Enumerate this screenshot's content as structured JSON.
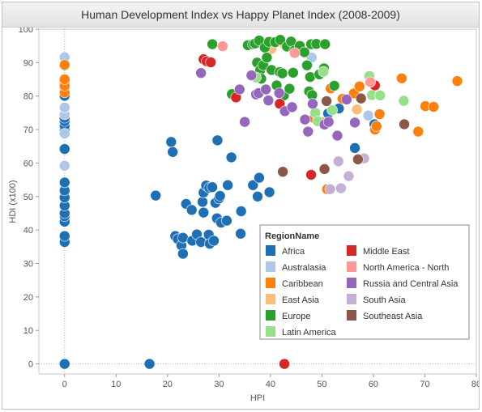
{
  "chart_data": {
    "type": "scatter",
    "title": "Human Development Index vs Happy Planet Index (2008-2009)",
    "xlabel": "HPI",
    "ylabel": "HDI (x100)",
    "xlim": [
      -5,
      80
    ],
    "ylim": [
      -3,
      100
    ],
    "x_ticks": [
      0,
      10,
      20,
      30,
      40,
      50,
      60,
      70,
      80
    ],
    "y_ticks": [
      0,
      10,
      20,
      30,
      40,
      50,
      60,
      70,
      80,
      90,
      100
    ],
    "grid": false,
    "reference_lines": [
      {
        "axis": "x",
        "value": 0
      },
      {
        "axis": "y",
        "value": 0
      }
    ],
    "legend_title": "RegionName",
    "legend_position": "lower-right",
    "series": [
      {
        "name": "Africa",
        "color": "#1f6fb4",
        "points": [
          [
            0,
            0
          ],
          [
            16.5,
            0
          ],
          [
            17.7,
            50.3
          ],
          [
            20.7,
            66.3
          ],
          [
            21,
            63.3
          ],
          [
            21.5,
            38.2
          ],
          [
            22,
            37.3
          ],
          [
            22.7,
            35.4
          ],
          [
            23,
            32.9
          ],
          [
            23,
            37.7
          ],
          [
            23.6,
            47.8
          ],
          [
            24.7,
            46
          ],
          [
            24.8,
            36.8
          ],
          [
            25.7,
            38.7
          ],
          [
            26.5,
            36.4
          ],
          [
            26.8,
            48.4
          ],
          [
            27,
            45.2
          ],
          [
            27,
            51.2
          ],
          [
            27.5,
            53.3
          ],
          [
            28,
            38.6
          ],
          [
            28.1,
            52.6
          ],
          [
            28.2,
            35.9
          ],
          [
            28.7,
            52.8
          ],
          [
            29,
            36.8
          ],
          [
            29.3,
            48.1
          ],
          [
            29.6,
            43.5
          ],
          [
            29.7,
            66.8
          ],
          [
            30,
            49.4
          ],
          [
            30.2,
            50.2
          ],
          [
            30.4,
            42.2
          ],
          [
            31.5,
            42.8
          ],
          [
            31.7,
            53.4
          ],
          [
            32.4,
            61.7
          ],
          [
            34.2,
            38.9
          ],
          [
            34.3,
            45.6
          ],
          [
            36.6,
            53.4
          ],
          [
            37.5,
            50
          ],
          [
            37.8,
            55.6
          ],
          [
            39.8,
            51.3
          ],
          [
            51.2,
            74.8
          ],
          [
            53.3,
            76.3
          ],
          [
            56.4,
            64.5
          ],
          [
            60.2,
            71.6
          ],
          [
            0,
            36.4
          ],
          [
            0,
            38.2
          ],
          [
            0,
            42.5
          ],
          [
            0,
            44.1
          ],
          [
            0,
            45
          ],
          [
            0,
            47.3
          ],
          [
            0,
            49.7
          ],
          [
            0,
            51.8
          ],
          [
            0,
            54.2
          ],
          [
            0,
            64.2
          ],
          [
            0,
            69.9
          ],
          [
            0,
            71.1
          ],
          [
            0,
            72.5
          ],
          [
            0,
            73.5
          ],
          [
            0,
            80.1
          ],
          [
            0,
            82.5
          ],
          [
            0,
            84.2
          ]
        ]
      },
      {
        "name": "Australasia",
        "color": "#aec7e8",
        "points": [
          [
            0,
            59.2
          ],
          [
            0,
            68.8
          ],
          [
            0,
            74.5
          ],
          [
            0,
            76.6
          ],
          [
            0,
            91.6
          ],
          [
            48,
            91.5
          ],
          [
            59,
            74.2
          ]
        ]
      },
      {
        "name": "Caribbean",
        "color": "#ff7f0e",
        "points": [
          [
            0,
            81.1
          ],
          [
            0,
            83.1
          ],
          [
            0,
            85
          ],
          [
            0,
            89.3
          ],
          [
            48.5,
            73.4
          ],
          [
            49.8,
            72.2
          ],
          [
            51,
            52.2
          ],
          [
            51.7,
            82.3
          ],
          [
            54,
            79.2
          ],
          [
            56.2,
            80.8
          ],
          [
            57.3,
            82.9
          ],
          [
            60.3,
            70
          ],
          [
            60.6,
            71
          ],
          [
            61.2,
            74.6
          ],
          [
            65.5,
            85.3
          ],
          [
            68.7,
            69.4
          ],
          [
            70.1,
            77
          ],
          [
            71.7,
            76.8
          ],
          [
            76.3,
            84.5
          ]
        ]
      },
      {
        "name": "East Asia",
        "color": "#ffbb78",
        "points": [
          [
            40.2,
            94.1
          ],
          [
            41.2,
            96.1
          ],
          [
            42.8,
            95.2
          ],
          [
            56.8,
            76
          ]
        ]
      },
      {
        "name": "Europe",
        "color": "#2ca02c",
        "points": [
          [
            28.7,
            95.5
          ],
          [
            32.5,
            80.6
          ],
          [
            35.6,
            95.2
          ],
          [
            36.6,
            95.5
          ],
          [
            37,
            95.7
          ],
          [
            37.4,
            90
          ],
          [
            37.8,
            96.6
          ],
          [
            38,
            87.8
          ],
          [
            38.2,
            85.2
          ],
          [
            38.6,
            89.2
          ],
          [
            38.9,
            94.5
          ],
          [
            39.3,
            91.5
          ],
          [
            39.7,
            96.2
          ],
          [
            40.2,
            87.8
          ],
          [
            40.9,
            96.1
          ],
          [
            41.2,
            83.2
          ],
          [
            41.8,
            87.2
          ],
          [
            41.9,
            96.8
          ],
          [
            42.3,
            86.8
          ],
          [
            42.6,
            80.2
          ],
          [
            43.2,
            94.8
          ],
          [
            43.7,
            82.2
          ],
          [
            44,
            96.3
          ],
          [
            44.4,
            87
          ],
          [
            44.6,
            93.5
          ],
          [
            45.7,
            95
          ],
          [
            46.6,
            93.1
          ],
          [
            47.1,
            89.2
          ],
          [
            47.5,
            81.4
          ],
          [
            47.7,
            85.7
          ],
          [
            47.9,
            95.5
          ],
          [
            48.1,
            80.3
          ],
          [
            48.9,
            95.6
          ],
          [
            49.5,
            86.5
          ],
          [
            50.4,
            88.3
          ],
          [
            50.6,
            95.5
          ],
          [
            52.4,
            83.1
          ]
        ]
      },
      {
        "name": "Latin America",
        "color": "#98df8a",
        "points": [
          [
            37.2,
            85.6
          ],
          [
            48.7,
            75
          ],
          [
            49.2,
            72.5
          ],
          [
            50.3,
            87.3
          ],
          [
            52,
            75.8
          ],
          [
            59.2,
            86
          ],
          [
            59.7,
            80.3
          ],
          [
            61.3,
            80.2
          ],
          [
            65.9,
            78.6
          ]
        ]
      },
      {
        "name": "Middle East",
        "color": "#d62728",
        "points": [
          [
            27,
            91
          ],
          [
            27.6,
            90.4
          ],
          [
            28.4,
            90.1
          ],
          [
            33.3,
            79.6
          ],
          [
            41.8,
            77.7
          ],
          [
            42.7,
            0
          ],
          [
            47.9,
            56.5
          ],
          [
            60.3,
            83.2
          ]
        ]
      },
      {
        "name": "North America - North",
        "color": "#ff9896",
        "points": [
          [
            30.7,
            94.9
          ],
          [
            44.7,
            92.9
          ],
          [
            59.4,
            84.2
          ]
        ]
      },
      {
        "name": "Russia and Central Asia",
        "color": "#9467bd",
        "points": [
          [
            26.5,
            86.9
          ],
          [
            34,
            82
          ],
          [
            35,
            72.3
          ],
          [
            36.3,
            86.2
          ],
          [
            37.2,
            80.5
          ],
          [
            37.7,
            80.9
          ],
          [
            39.1,
            82
          ],
          [
            39.6,
            78.7
          ],
          [
            41.7,
            80.9
          ],
          [
            42.8,
            75.5
          ],
          [
            44.2,
            76.7
          ],
          [
            46.7,
            73
          ],
          [
            47.3,
            69.4
          ],
          [
            48.2,
            77.7
          ],
          [
            50.5,
            71.5
          ],
          [
            51.3,
            72.3
          ],
          [
            53,
            68.2
          ],
          [
            54.8,
            79
          ],
          [
            56.4,
            72.1
          ]
        ]
      },
      {
        "name": "South Asia",
        "color": "#c5b0d5",
        "points": [
          [
            51.6,
            52.2
          ],
          [
            53.2,
            60.5
          ],
          [
            53.7,
            52.5
          ],
          [
            55.2,
            56.1
          ],
          [
            58.2,
            61.4
          ]
        ]
      },
      {
        "name": "Southeast Asia",
        "color": "#8c564b",
        "points": [
          [
            42.4,
            57.4
          ],
          [
            50.5,
            58.2
          ],
          [
            50.9,
            78.5
          ],
          [
            57,
            61.1
          ],
          [
            57.6,
            79.3
          ],
          [
            66,
            71.6
          ]
        ]
      }
    ]
  }
}
